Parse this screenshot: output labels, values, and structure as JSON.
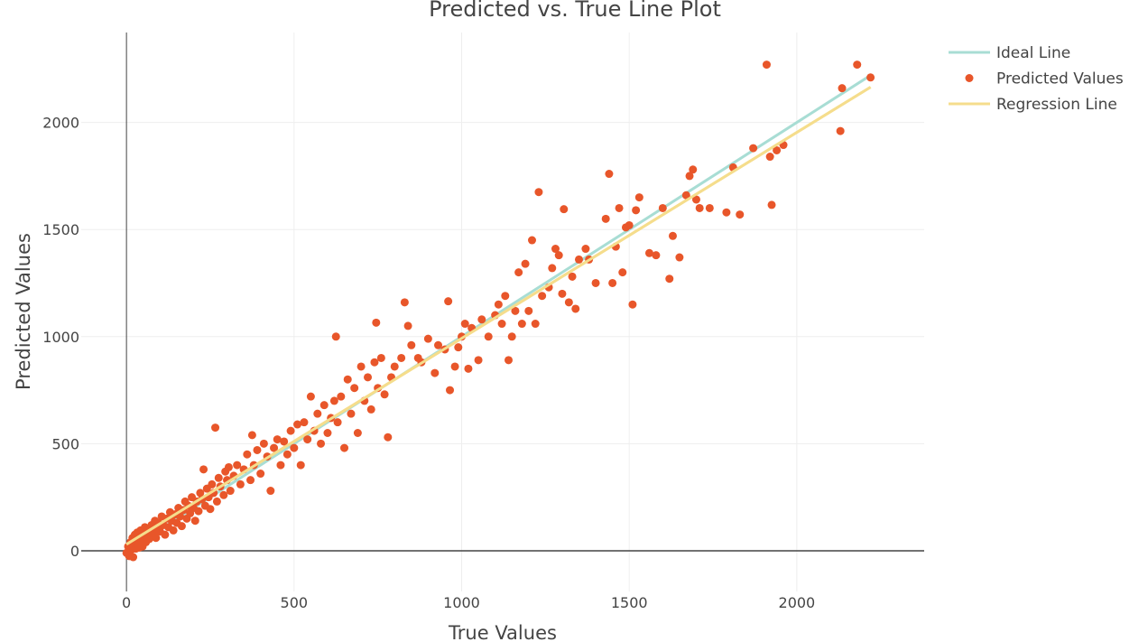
{
  "chart_data": {
    "type": "scatter",
    "title": "Predicted vs. True Line Plot",
    "xlabel": "True Values",
    "ylabel": "Predicted Values",
    "xlim": [
      -135,
      2380
    ],
    "ylim": [
      -190,
      2420
    ],
    "x_ticks": [
      0,
      500,
      1000,
      1500,
      2000
    ],
    "y_ticks": [
      0,
      500,
      1000,
      1500,
      2000
    ],
    "x_tick_labels": [
      "0",
      "500",
      "1000",
      "1500",
      "2000"
    ],
    "y_tick_labels": [
      "0",
      "500",
      "1000",
      "1500",
      "2000"
    ],
    "grid": true,
    "legend_position": "top-right",
    "series": [
      {
        "name": "Ideal Line",
        "type": "line",
        "color": "#a8ddd4",
        "x": [
          0,
          2220
        ],
        "y": [
          0,
          2220
        ]
      },
      {
        "name": "Predicted Values",
        "type": "scatter",
        "color": "#e8562a",
        "points": [
          [
            0,
            -10
          ],
          [
            5,
            20
          ],
          [
            8,
            -25
          ],
          [
            12,
            40
          ],
          [
            15,
            5
          ],
          [
            18,
            60
          ],
          [
            20,
            -30
          ],
          [
            22,
            25
          ],
          [
            25,
            75
          ],
          [
            28,
            10
          ],
          [
            30,
            45
          ],
          [
            32,
            85
          ],
          [
            35,
            30
          ],
          [
            38,
            15
          ],
          [
            40,
            60
          ],
          [
            42,
            95
          ],
          [
            45,
            50
          ],
          [
            48,
            20
          ],
          [
            50,
            80
          ],
          [
            55,
            110
          ],
          [
            58,
            40
          ],
          [
            60,
            70
          ],
          [
            65,
            100
          ],
          [
            68,
            55
          ],
          [
            70,
            90
          ],
          [
            75,
            120
          ],
          [
            80,
            75
          ],
          [
            85,
            140
          ],
          [
            88,
            60
          ],
          [
            90,
            105
          ],
          [
            95,
            130
          ],
          [
            100,
            90
          ],
          [
            105,
            160
          ],
          [
            110,
            120
          ],
          [
            115,
            75
          ],
          [
            120,
            150
          ],
          [
            125,
            110
          ],
          [
            130,
            180
          ],
          [
            135,
            140
          ],
          [
            140,
            95
          ],
          [
            145,
            170
          ],
          [
            150,
            130
          ],
          [
            155,
            200
          ],
          [
            160,
            160
          ],
          [
            165,
            115
          ],
          [
            170,
            190
          ],
          [
            175,
            230
          ],
          [
            180,
            150
          ],
          [
            185,
            210
          ],
          [
            190,
            175
          ],
          [
            195,
            250
          ],
          [
            200,
            200
          ],
          [
            205,
            140
          ],
          [
            210,
            230
          ],
          [
            215,
            185
          ],
          [
            220,
            270
          ],
          [
            225,
            240
          ],
          [
            230,
            380
          ],
          [
            235,
            210
          ],
          [
            240,
            290
          ],
          [
            245,
            250
          ],
          [
            250,
            195
          ],
          [
            255,
            310
          ],
          [
            260,
            270
          ],
          [
            265,
            575
          ],
          [
            270,
            230
          ],
          [
            275,
            340
          ],
          [
            280,
            300
          ],
          [
            290,
            260
          ],
          [
            295,
            370
          ],
          [
            300,
            330
          ],
          [
            305,
            390
          ],
          [
            310,
            280
          ],
          [
            320,
            350
          ],
          [
            330,
            400
          ],
          [
            340,
            310
          ],
          [
            350,
            380
          ],
          [
            360,
            450
          ],
          [
            370,
            330
          ],
          [
            375,
            540
          ],
          [
            380,
            400
          ],
          [
            390,
            470
          ],
          [
            400,
            360
          ],
          [
            410,
            500
          ],
          [
            420,
            440
          ],
          [
            430,
            280
          ],
          [
            440,
            480
          ],
          [
            450,
            520
          ],
          [
            460,
            400
          ],
          [
            470,
            510
          ],
          [
            480,
            450
          ],
          [
            490,
            560
          ],
          [
            500,
            480
          ],
          [
            510,
            590
          ],
          [
            520,
            400
          ],
          [
            530,
            600
          ],
          [
            540,
            520
          ],
          [
            550,
            720
          ],
          [
            560,
            560
          ],
          [
            570,
            640
          ],
          [
            580,
            500
          ],
          [
            590,
            680
          ],
          [
            600,
            550
          ],
          [
            610,
            620
          ],
          [
            620,
            700
          ],
          [
            625,
            1000
          ],
          [
            630,
            600
          ],
          [
            640,
            720
          ],
          [
            650,
            480
          ],
          [
            660,
            800
          ],
          [
            670,
            640
          ],
          [
            680,
            760
          ],
          [
            690,
            550
          ],
          [
            700,
            860
          ],
          [
            710,
            700
          ],
          [
            720,
            810
          ],
          [
            730,
            660
          ],
          [
            740,
            880
          ],
          [
            745,
            1065
          ],
          [
            750,
            760
          ],
          [
            760,
            900
          ],
          [
            770,
            730
          ],
          [
            780,
            530
          ],
          [
            790,
            810
          ],
          [
            800,
            860
          ],
          [
            820,
            900
          ],
          [
            830,
            1160
          ],
          [
            840,
            1050
          ],
          [
            850,
            960
          ],
          [
            870,
            900
          ],
          [
            880,
            880
          ],
          [
            900,
            990
          ],
          [
            920,
            830
          ],
          [
            930,
            960
          ],
          [
            950,
            940
          ],
          [
            960,
            1165
          ],
          [
            965,
            750
          ],
          [
            980,
            860
          ],
          [
            990,
            950
          ],
          [
            1000,
            1000
          ],
          [
            1010,
            1060
          ],
          [
            1020,
            850
          ],
          [
            1030,
            1040
          ],
          [
            1050,
            890
          ],
          [
            1060,
            1080
          ],
          [
            1080,
            1000
          ],
          [
            1100,
            1100
          ],
          [
            1110,
            1150
          ],
          [
            1120,
            1060
          ],
          [
            1130,
            1190
          ],
          [
            1140,
            890
          ],
          [
            1150,
            1000
          ],
          [
            1160,
            1120
          ],
          [
            1170,
            1300
          ],
          [
            1180,
            1060
          ],
          [
            1190,
            1340
          ],
          [
            1200,
            1120
          ],
          [
            1210,
            1450
          ],
          [
            1220,
            1060
          ],
          [
            1230,
            1675
          ],
          [
            1240,
            1190
          ],
          [
            1260,
            1230
          ],
          [
            1270,
            1320
          ],
          [
            1280,
            1410
          ],
          [
            1290,
            1380
          ],
          [
            1300,
            1200
          ],
          [
            1305,
            1595
          ],
          [
            1320,
            1160
          ],
          [
            1330,
            1280
          ],
          [
            1340,
            1130
          ],
          [
            1350,
            1360
          ],
          [
            1370,
            1410
          ],
          [
            1380,
            1360
          ],
          [
            1400,
            1250
          ],
          [
            1430,
            1550
          ],
          [
            1440,
            1760
          ],
          [
            1450,
            1250
          ],
          [
            1460,
            1420
          ],
          [
            1470,
            1600
          ],
          [
            1480,
            1300
          ],
          [
            1490,
            1510
          ],
          [
            1500,
            1520
          ],
          [
            1510,
            1150
          ],
          [
            1520,
            1590
          ],
          [
            1530,
            1650
          ],
          [
            1560,
            1390
          ],
          [
            1580,
            1380
          ],
          [
            1600,
            1600
          ],
          [
            1620,
            1270
          ],
          [
            1630,
            1470
          ],
          [
            1650,
            1370
          ],
          [
            1670,
            1660
          ],
          [
            1680,
            1750
          ],
          [
            1690,
            1780
          ],
          [
            1700,
            1640
          ],
          [
            1710,
            1600
          ],
          [
            1740,
            1600
          ],
          [
            1790,
            1580
          ],
          [
            1810,
            1790
          ],
          [
            1830,
            1570
          ],
          [
            1870,
            1880
          ],
          [
            1910,
            2270
          ],
          [
            1920,
            1840
          ],
          [
            1925,
            1615
          ],
          [
            1940,
            1870
          ],
          [
            1960,
            1895
          ],
          [
            2130,
            1960
          ],
          [
            2135,
            2160
          ],
          [
            2180,
            2270
          ],
          [
            2220,
            2210
          ]
        ]
      },
      {
        "name": "Regression Line",
        "type": "line",
        "color": "#f5dd8c",
        "x": [
          0,
          2220
        ],
        "y": [
          30,
          2165
        ]
      }
    ]
  }
}
